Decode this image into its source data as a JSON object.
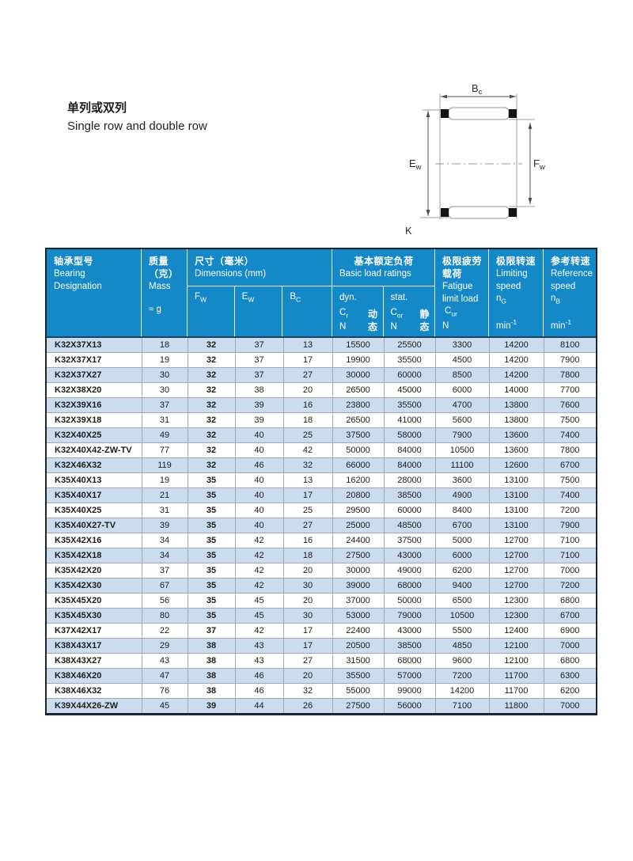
{
  "intro": {
    "zh": "单列或双列",
    "en": "Single row and double row"
  },
  "diagram": {
    "bc": {
      "base": "B",
      "sub": "c"
    },
    "ew": {
      "base": "E",
      "sub": "w"
    },
    "fw": {
      "base": "F",
      "sub": "w"
    },
    "k": "K"
  },
  "colors": {
    "header_blue": "#1588c8",
    "alt_row_blue": "#cadcee",
    "grid_gray": "#a3a9b0",
    "border_dark": "#1d2531"
  },
  "table": {
    "header": {
      "designation_zh": "轴承型号",
      "designation_en1": "Bearing",
      "designation_en2": "Designation",
      "mass_zh1": "质量",
      "mass_zh2": "（克）",
      "mass_en": "Mass",
      "mass_unit": "≈ g",
      "dims_zh": "尺寸（毫米）",
      "dims_en": "Dimensions (mm)",
      "fw": {
        "base": "F",
        "sub": "W"
      },
      "ew": {
        "base": "E",
        "sub": "W"
      },
      "bc": {
        "base": "B",
        "sub": "C"
      },
      "loads_zh": "基本额定负荷",
      "loads_en": "Basic load ratings",
      "dyn_label": "dyn.",
      "dyn_sym": {
        "base": "C",
        "sub": "r"
      },
      "dyn_unit": "N",
      "dyn_zh": "动态",
      "stat_label": "stat.",
      "stat_sym": {
        "base": "C",
        "sub": "or"
      },
      "stat_unit": "N",
      "stat_zh": "静态",
      "fatigue_zh1": "极限疲劳",
      "fatigue_zh2": "载荷",
      "fatigue_en1": "Fatigue",
      "fatigue_en2": "limit load",
      "fatigue_sym": {
        "base": "C",
        "sub": "ur"
      },
      "fatigue_unit": "N",
      "limiting_zh": "极限转速",
      "limiting_en1": "Limiting",
      "limiting_en2": "speed",
      "limiting_sym": {
        "base": "n",
        "sub": "G"
      },
      "limiting_unit": {
        "base": "min",
        "sup": "-1"
      },
      "reference_zh": "参考转速",
      "reference_en1": "Reference",
      "reference_en2": "speed",
      "reference_sym": {
        "base": "n",
        "sub": "B"
      },
      "reference_unit": {
        "base": "min",
        "sup": "-1"
      }
    },
    "rows": [
      [
        "K32X37X13",
        "18",
        "32",
        "37",
        "13",
        "15500",
        "25500",
        "3300",
        "14200",
        "8100"
      ],
      [
        "K32X37X17",
        "19",
        "32",
        "37",
        "17",
        "19900",
        "35500",
        "4500",
        "14200",
        "7900"
      ],
      [
        "K32X37X27",
        "30",
        "32",
        "37",
        "27",
        "30000",
        "60000",
        "8500",
        "14200",
        "7800"
      ],
      [
        "K32X38X20",
        "30",
        "32",
        "38",
        "20",
        "26500",
        "45000",
        "6000",
        "14000",
        "7700"
      ],
      [
        "K32X39X16",
        "37",
        "32",
        "39",
        "16",
        "23800",
        "35500",
        "4700",
        "13800",
        "7600"
      ],
      [
        "K32X39X18",
        "31",
        "32",
        "39",
        "18",
        "26500",
        "41000",
        "5600",
        "13800",
        "7500"
      ],
      [
        "K32X40X25",
        "49",
        "32",
        "40",
        "25",
        "37500",
        "58000",
        "7900",
        "13600",
        "7400"
      ],
      [
        "K32X40X42-ZW-TV",
        "77",
        "32",
        "40",
        "42",
        "50000",
        "84000",
        "10500",
        "13600",
        "7800"
      ],
      [
        "K32X46X32",
        "119",
        "32",
        "46",
        "32",
        "66000",
        "84000",
        "11100",
        "12600",
        "6700"
      ],
      [
        "K35X40X13",
        "19",
        "35",
        "40",
        "13",
        "16200",
        "28000",
        "3600",
        "13100",
        "7500"
      ],
      [
        "K35X40X17",
        "21",
        "35",
        "40",
        "17",
        "20800",
        "38500",
        "4900",
        "13100",
        "7400"
      ],
      [
        "K35X40X25",
        "31",
        "35",
        "40",
        "25",
        "29500",
        "60000",
        "8400",
        "13100",
        "7200"
      ],
      [
        "K35X40X27-TV",
        "39",
        "35",
        "40",
        "27",
        "25000",
        "48500",
        "6700",
        "13100",
        "7900"
      ],
      [
        "K35X42X16",
        "34",
        "35",
        "42",
        "16",
        "24400",
        "37500",
        "5000",
        "12700",
        "7100"
      ],
      [
        "K35X42X18",
        "34",
        "35",
        "42",
        "18",
        "27500",
        "43000",
        "6000",
        "12700",
        "7100"
      ],
      [
        "K35X42X20",
        "37",
        "35",
        "42",
        "20",
        "30000",
        "49000",
        "6200",
        "12700",
        "7000"
      ],
      [
        "K35X42X30",
        "67",
        "35",
        "42",
        "30",
        "39000",
        "68000",
        "9400",
        "12700",
        "7200"
      ],
      [
        "K35X45X20",
        "56",
        "35",
        "45",
        "20",
        "37000",
        "50000",
        "6500",
        "12300",
        "6800"
      ],
      [
        "K35X45X30",
        "80",
        "35",
        "45",
        "30",
        "53000",
        "79000",
        "10500",
        "12300",
        "6700"
      ],
      [
        "K37X42X17",
        "22",
        "37",
        "42",
        "17",
        "22400",
        "43000",
        "5500",
        "12400",
        "6900"
      ],
      [
        "K38X43X17",
        "29",
        "38",
        "43",
        "17",
        "20500",
        "38500",
        "4850",
        "12100",
        "7000"
      ],
      [
        "K38X43X27",
        "43",
        "38",
        "43",
        "27",
        "31500",
        "68000",
        "9600",
        "12100",
        "6800"
      ],
      [
        "K38X46X20",
        "47",
        "38",
        "46",
        "20",
        "35500",
        "57000",
        "7200",
        "11700",
        "6300"
      ],
      [
        "K38X46X32",
        "76",
        "38",
        "46",
        "32",
        "55000",
        "99000",
        "14200",
        "11700",
        "6200"
      ],
      [
        "K39X44X26-ZW",
        "45",
        "39",
        "44",
        "26",
        "27500",
        "56000",
        "7100",
        "11800",
        "7000"
      ]
    ]
  }
}
